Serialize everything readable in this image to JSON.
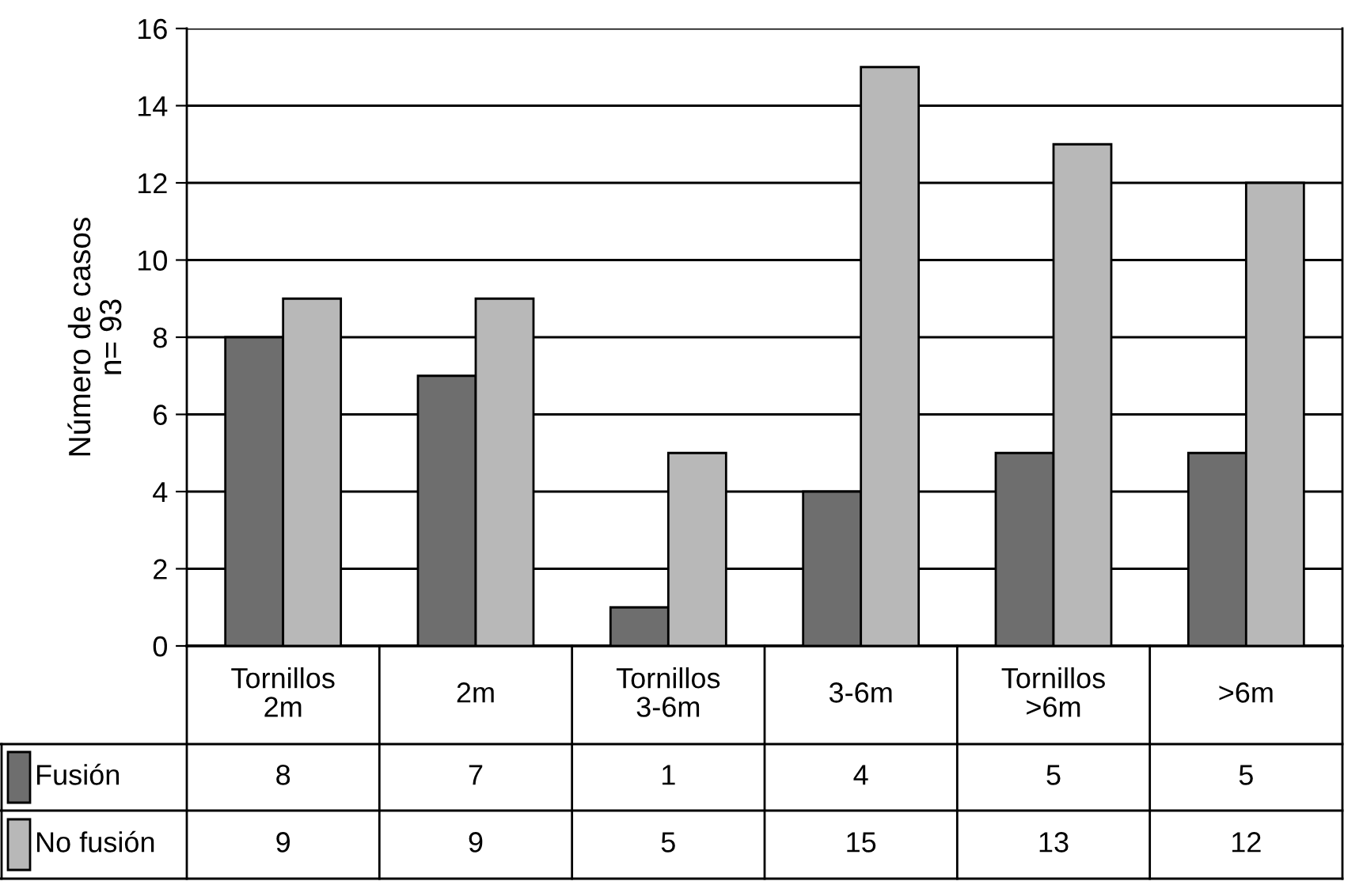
{
  "chart_data": {
    "type": "bar",
    "ylabel": "Número de casos\nn= 93",
    "categories": [
      "Tornillos\n2m",
      "2m",
      "Tornillos\n3-6m",
      "3-6m",
      "Tornillos\n>6m",
      ">6m"
    ],
    "series": [
      {
        "name": "Fusión",
        "color": "#6e6e6e",
        "values": [
          8,
          7,
          1,
          4,
          5,
          5
        ]
      },
      {
        "name": "No fusión",
        "color": "#b8b8b8",
        "values": [
          9,
          9,
          5,
          15,
          13,
          12
        ]
      }
    ],
    "ylim": [
      0,
      16
    ],
    "yticks": [
      0,
      2,
      4,
      6,
      8,
      10,
      12,
      14,
      16
    ],
    "grid": "y",
    "data_labels": true,
    "legend": "bottom left"
  }
}
